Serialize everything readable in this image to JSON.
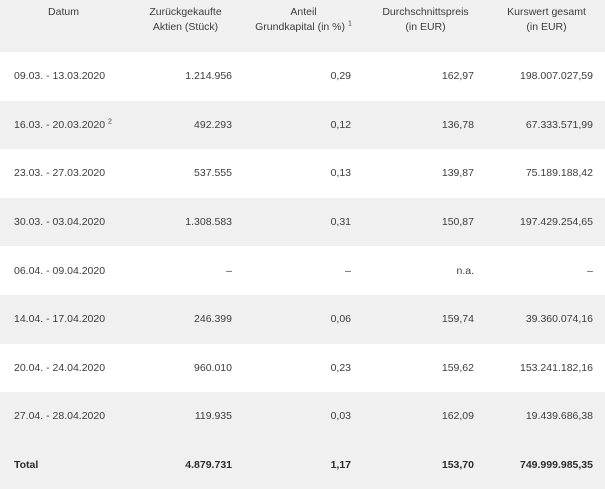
{
  "headers": {
    "date": "Datum",
    "shares_l1": "Zurückgekaufte",
    "shares_l2": "Aktien (Stück)",
    "share_capital_l1": "Anteil",
    "share_capital_l2": "Grundkapital (in %)",
    "share_capital_fn": "1",
    "avg_price_l1": "Durchschnittspreis",
    "avg_price_l2": "(in EUR)",
    "total_value_l1": "Kurswert gesamt",
    "total_value_l2": "(in EUR)"
  },
  "rows": [
    {
      "date": "09.03. - 13.03.2020",
      "fn": "",
      "shares": "1.214.956",
      "share_capital": "0,29",
      "avg_price": "162,97",
      "total_value": "198.007.027,59"
    },
    {
      "date": "16.03. - 20.03.2020",
      "fn": "2",
      "shares": "492.293",
      "share_capital": "0,12",
      "avg_price": "136,78",
      "total_value": "67.333.571,99"
    },
    {
      "date": "23.03. - 27.03.2020",
      "fn": "",
      "shares": "537.555",
      "share_capital": "0,13",
      "avg_price": "139,87",
      "total_value": "75.189.188,42"
    },
    {
      "date": "30.03. - 03.04.2020",
      "fn": "",
      "shares": "1.308.583",
      "share_capital": "0,31",
      "avg_price": "150,87",
      "total_value": "197.429.254,65"
    },
    {
      "date": "06.04. - 09.04.2020",
      "fn": "",
      "shares": "–",
      "share_capital": "–",
      "avg_price": "n.a.",
      "total_value": "–"
    },
    {
      "date": "14.04. - 17.04.2020",
      "fn": "",
      "shares": "246.399",
      "share_capital": "0,06",
      "avg_price": "159,74",
      "total_value": "39.360.074,16"
    },
    {
      "date": "20.04. - 24.04.2020",
      "fn": "",
      "shares": "960.010",
      "share_capital": "0,23",
      "avg_price": "159,62",
      "total_value": "153.241.182,16"
    },
    {
      "date": "27.04. - 28.04.2020",
      "fn": "",
      "shares": "119.935",
      "share_capital": "0,03",
      "avg_price": "162,09",
      "total_value": "19.439.686,38"
    }
  ],
  "total": {
    "label": "Total",
    "shares": "4.879.731",
    "share_capital": "1,17",
    "avg_price": "153,70",
    "total_value": "749.999.985,35"
  }
}
